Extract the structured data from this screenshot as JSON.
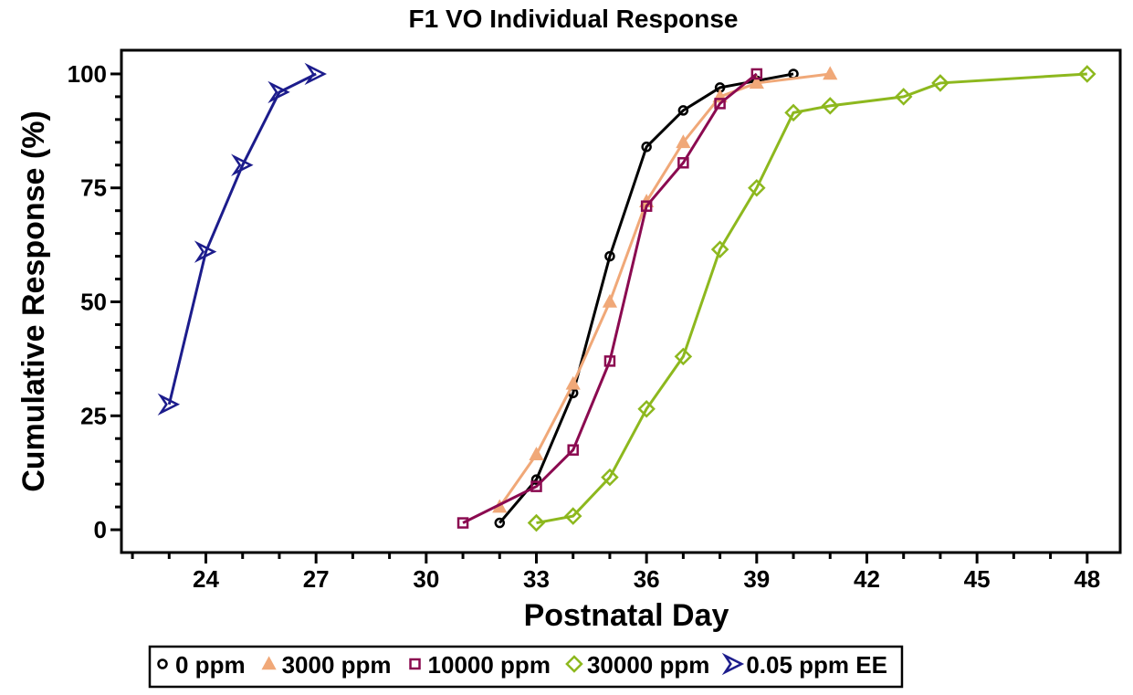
{
  "chart_data": {
    "type": "line",
    "title": "F1 VO Individual Response",
    "x_label": "Postnatal Day",
    "y_label": "Cumulative Response (%)",
    "xlim": [
      21.7,
      48.9
    ],
    "xticks": [
      24,
      27,
      30,
      33,
      36,
      39,
      42,
      45,
      48
    ],
    "xminorticks": [
      22,
      23,
      25,
      26,
      28,
      29,
      31,
      32,
      34,
      35,
      37,
      38,
      40,
      41,
      43,
      44,
      46,
      47
    ],
    "ylim": [
      -5,
      105.2
    ],
    "yticks": [
      0,
      25,
      50,
      75,
      100
    ],
    "yminorticks": [
      5,
      10,
      15,
      20,
      30,
      35,
      40,
      45,
      55,
      60,
      65,
      70,
      80,
      85,
      90,
      95
    ],
    "legend_position": "bottom",
    "series": [
      {
        "name": "0 ppm",
        "color": "#000000",
        "marker": "circle",
        "x": [
          32,
          33,
          34,
          35,
          36,
          37,
          38,
          39,
          40
        ],
        "values": [
          1.5,
          11,
          30,
          60,
          84,
          92,
          97,
          98.5,
          100
        ]
      },
      {
        "name": "3000 ppm",
        "color": "#f0a878",
        "marker": "triangle",
        "x": [
          32,
          33,
          34,
          35,
          36,
          37,
          38,
          39,
          41
        ],
        "values": [
          5,
          16.5,
          32,
          50,
          72,
          85,
          95,
          98,
          100
        ]
      },
      {
        "name": "10000 ppm",
        "color": "#8b0a50",
        "marker": "square",
        "x": [
          31,
          33,
          34,
          35,
          36,
          37,
          38,
          39
        ],
        "values": [
          1.5,
          9.5,
          17.5,
          37,
          71,
          80.5,
          93.5,
          100
        ]
      },
      {
        "name": "30000 ppm",
        "color": "#8db81e",
        "marker": "diamond",
        "x": [
          33,
          34,
          35,
          36,
          37,
          38,
          39,
          40,
          41,
          43,
          44,
          48
        ],
        "values": [
          1.5,
          3,
          11.5,
          26.5,
          38,
          61.5,
          75,
          91.5,
          93,
          95,
          98,
          100
        ]
      },
      {
        "name": "0.05 ppm EE",
        "color": "#1c1c8c",
        "marker": "arrow",
        "x": [
          23,
          24,
          25,
          26,
          27
        ],
        "values": [
          27.5,
          61,
          80,
          96,
          100
        ]
      }
    ]
  }
}
